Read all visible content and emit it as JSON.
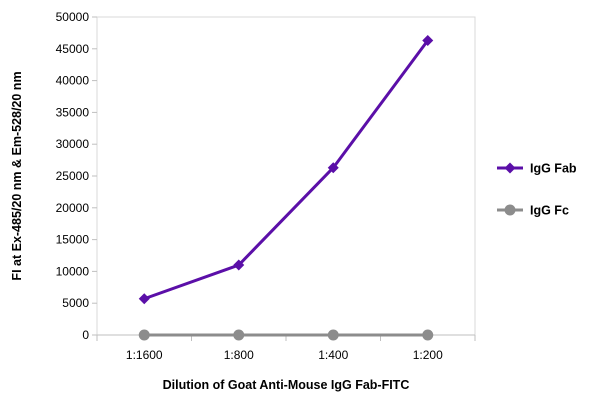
{
  "chart_data": {
    "type": "line",
    "title": "",
    "xlabel": "Dilution of Goat Anti-Mouse IgG Fab-FITC",
    "ylabel": "FI at Ex-485/20 nm & Em-528/20 nm",
    "categories": [
      "1:1600",
      "1:800",
      "1:400",
      "1:200"
    ],
    "ylim": [
      0,
      50000
    ],
    "yticks": [
      0,
      5000,
      10000,
      15000,
      20000,
      25000,
      30000,
      35000,
      40000,
      45000,
      50000
    ],
    "ytick_labels": [
      "0",
      "5000",
      "10000",
      "15000",
      "20000",
      "25000",
      "30000",
      "35000",
      "40000",
      "45000",
      "50000"
    ],
    "grid": false,
    "legend_position": "right",
    "series": [
      {
        "name": "IgG Fab",
        "values": [
          5700,
          11000,
          26300,
          46300
        ],
        "color": "#5b0fa8",
        "marker": "diamond"
      },
      {
        "name": "IgG Fc",
        "values": [
          0,
          0,
          0,
          0
        ],
        "color": "#8c8c8c",
        "marker": "circle"
      }
    ]
  }
}
